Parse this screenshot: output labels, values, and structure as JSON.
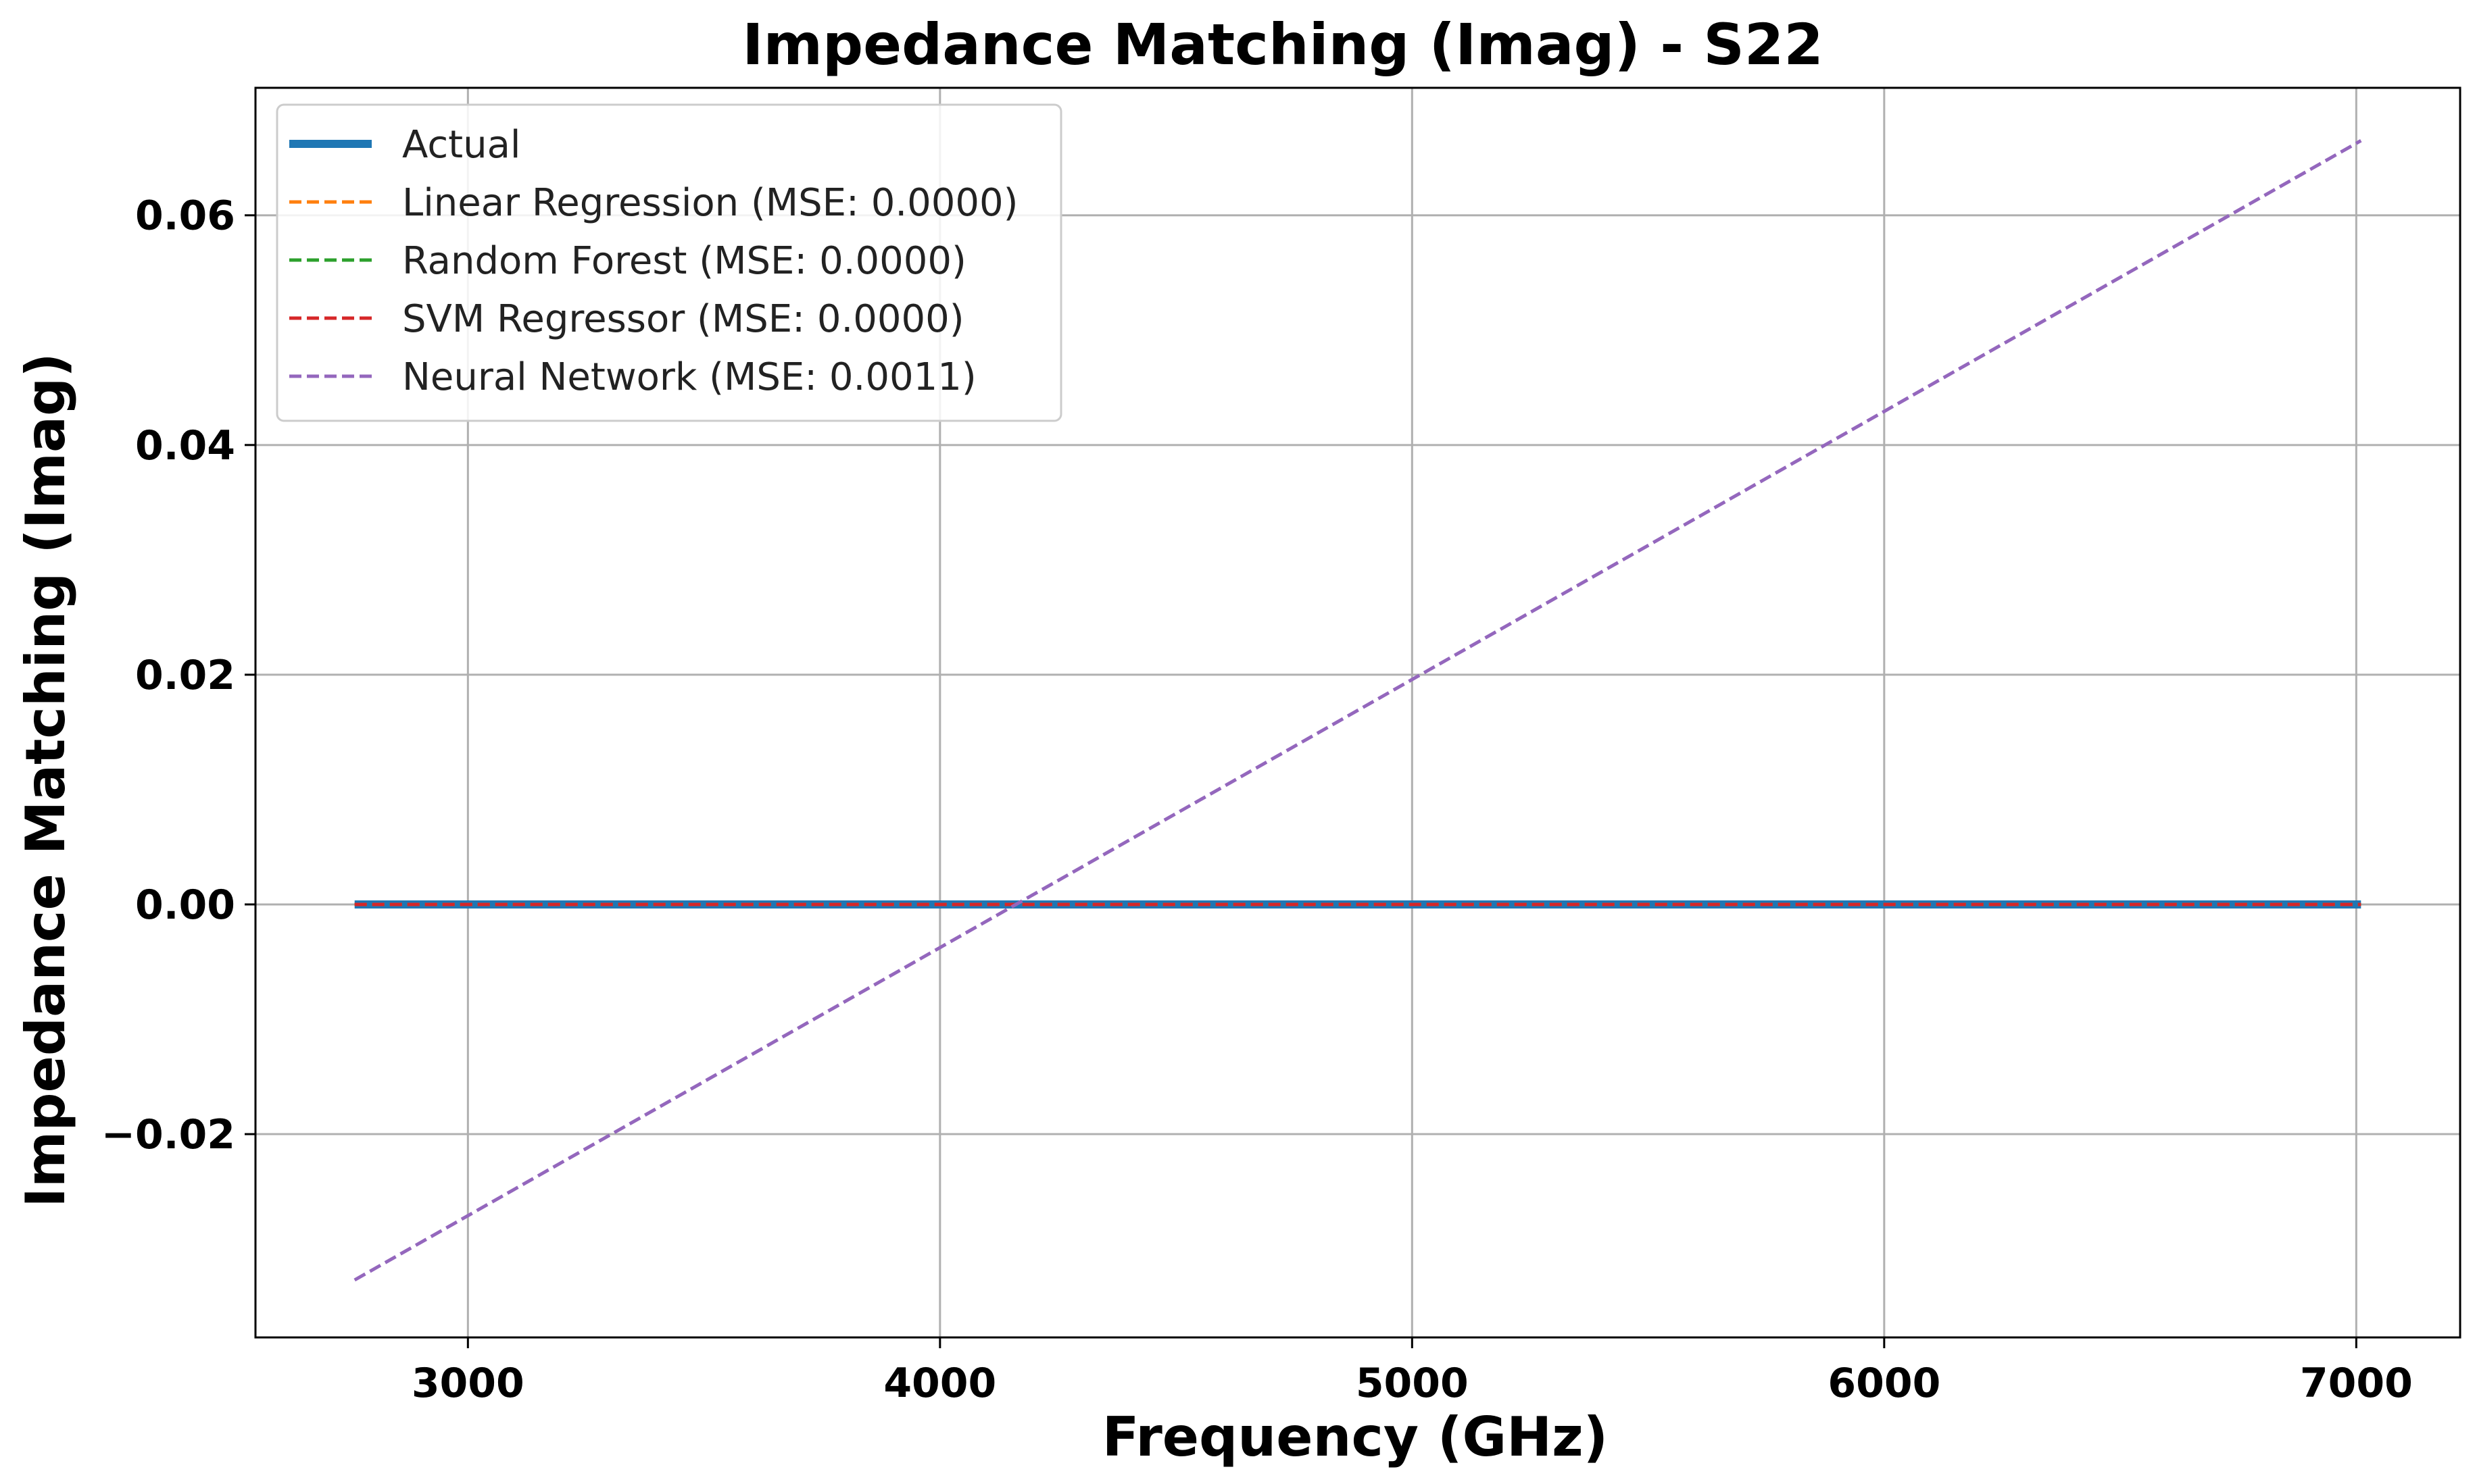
{
  "chart_data": {
    "type": "line",
    "title": "Impedance Matching (Imag) - S22",
    "xlabel": "Frequency (GHz)",
    "ylabel": "Impedance Matching (Imag)",
    "xlim": [
      2550,
      7220
    ],
    "ylim": [
      -0.0377,
      0.0711
    ],
    "xticks": [
      3000,
      4000,
      5000,
      6000,
      7000
    ],
    "xtick_labels": [
      "3000",
      "4000",
      "5000",
      "6000",
      "7000"
    ],
    "yticks": [
      -0.02,
      0.0,
      0.02,
      0.04,
      0.06
    ],
    "ytick_labels": [
      "−0.02",
      "0.00",
      "0.02",
      "0.04",
      "0.06"
    ],
    "grid": true,
    "legend_position": "top-left",
    "series": [
      {
        "name": "Actual",
        "color": "#1f77b4",
        "style": "solid",
        "x": [
          2760,
          7010
        ],
        "y": [
          0.0,
          0.0
        ]
      },
      {
        "name": "Linear Regression (MSE: 0.0000)",
        "color": "#ff7f0e",
        "style": "dashed",
        "x": [
          2760,
          7010
        ],
        "y": [
          0.0,
          0.0
        ]
      },
      {
        "name": "Random Forest (MSE: 0.0000)",
        "color": "#2ca02c",
        "style": "dashed",
        "x": [
          2760,
          7010
        ],
        "y": [
          0.0,
          0.0
        ]
      },
      {
        "name": "SVM Regressor (MSE: 0.0000)",
        "color": "#d62728",
        "style": "dashed",
        "x": [
          2760,
          7010
        ],
        "y": [
          0.0,
          0.0
        ]
      },
      {
        "name": "Neural Network (MSE: 0.0011)",
        "color": "#9467bd",
        "style": "dashed",
        "x": [
          2760,
          7010
        ],
        "y": [
          -0.0327,
          0.0665
        ]
      }
    ]
  }
}
